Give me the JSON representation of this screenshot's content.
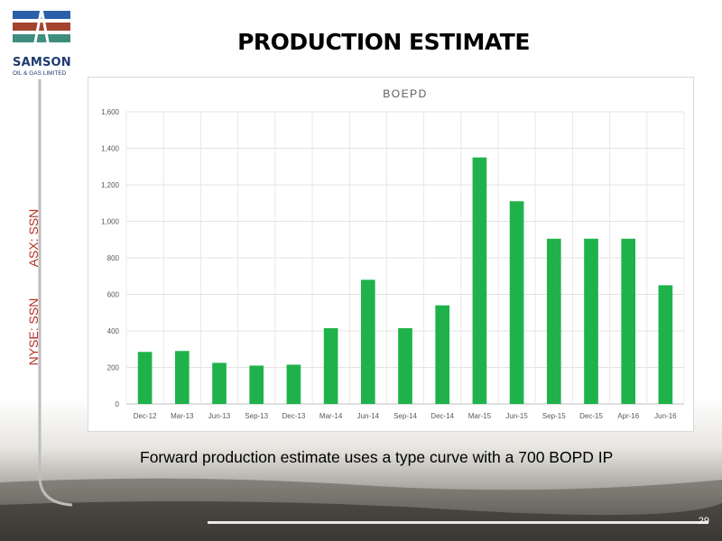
{
  "slide": {
    "title": "PRODUCTION ESTIMATE",
    "caption": "Forward production estimate uses a type curve with a 700 BOPD IP",
    "page_number": "29",
    "ticker_asx": "ASX: SSN",
    "ticker_nyse": "NYSE: SSN"
  },
  "logo": {
    "name": "SAMSON",
    "subtitle": "OIL & GAS LIMITED"
  },
  "colors": {
    "bar": "#1fb24a",
    "ticker": "#b5302a",
    "logo_blue": "#2b5fa8",
    "logo_red": "#a4432f",
    "logo_teal": "#3e8d7f"
  },
  "chart_data": {
    "type": "bar",
    "title": "BOEPD",
    "xlabel": "",
    "ylabel": "",
    "categories": [
      "Dec-12",
      "Mar-13",
      "Jun-13",
      "Sep-13",
      "Dec-13",
      "Mar-14",
      "Jun-14",
      "Sep-14",
      "Dec-14",
      "Mar-15",
      "Jun-15",
      "Sep-15",
      "Dec-15",
      "Apr-16",
      "Jun-16"
    ],
    "values": [
      285,
      290,
      225,
      210,
      215,
      415,
      680,
      415,
      540,
      1350,
      1110,
      905,
      905,
      905,
      650
    ],
    "ylim": [
      0,
      1600
    ],
    "yticks": [
      "0",
      "200",
      "400",
      "600",
      "800",
      "1,000",
      "1,200",
      "1,400",
      "1,600"
    ],
    "grid": true,
    "legend": "none"
  }
}
